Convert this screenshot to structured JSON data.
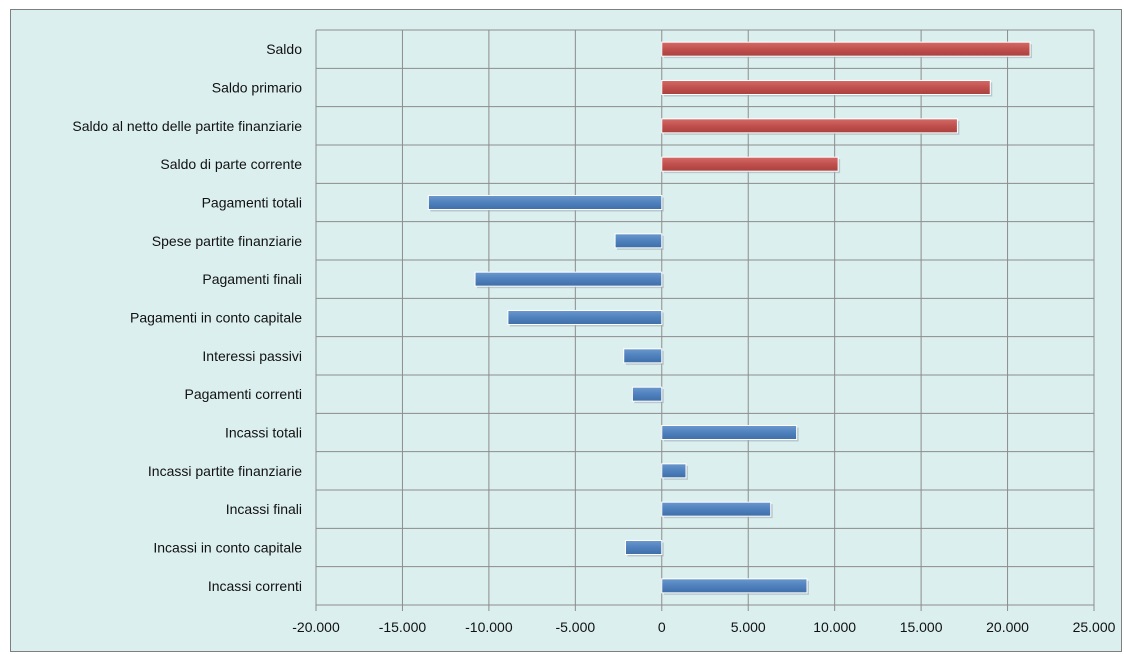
{
  "chart_data": {
    "type": "bar",
    "orientation": "horizontal",
    "categories": [
      "Saldo",
      "Saldo primario",
      "Saldo al netto delle partite finanziarie",
      "Saldo di parte corrente",
      "Pagamenti totali",
      "Spese partite finanziarie",
      "Pagamenti finali",
      "Pagamenti in conto capitale",
      "Interessi passivi",
      "Pagamenti correnti",
      "Incassi totali",
      "Incassi partite finanziarie",
      "Incassi finali",
      "Incassi in conto capitale",
      "Incassi correnti"
    ],
    "values": [
      21300,
      19000,
      17100,
      10200,
      -13500,
      -2700,
      -10800,
      -8900,
      -2200,
      -1700,
      7800,
      1400,
      6300,
      -2100,
      8400
    ],
    "bar_colors": [
      "#c0504d",
      "#c0504d",
      "#c0504d",
      "#c0504d",
      "#4f81bd",
      "#4f81bd",
      "#4f81bd",
      "#4f81bd",
      "#4f81bd",
      "#4f81bd",
      "#4f81bd",
      "#4f81bd",
      "#4f81bd",
      "#4f81bd",
      "#4f81bd"
    ],
    "xlim": [
      -20000,
      25000
    ],
    "xticks": [
      -20000,
      -15000,
      -10000,
      -5000,
      0,
      5000,
      10000,
      15000,
      20000,
      25000
    ],
    "xtick_labels": [
      "-20.000",
      "-15.000",
      "-10.000",
      "-5.000",
      "0",
      "5.000",
      "10.000",
      "15.000",
      "20.000",
      "25.000"
    ],
    "grid": true,
    "legend": "none",
    "title": "",
    "xlabel": "",
    "ylabel": ""
  },
  "colors": {
    "plot_background": "#dcefef",
    "gridline": "#8c8c8c",
    "saldo_bars": "#c0504d",
    "flow_bars": "#4f81bd"
  }
}
